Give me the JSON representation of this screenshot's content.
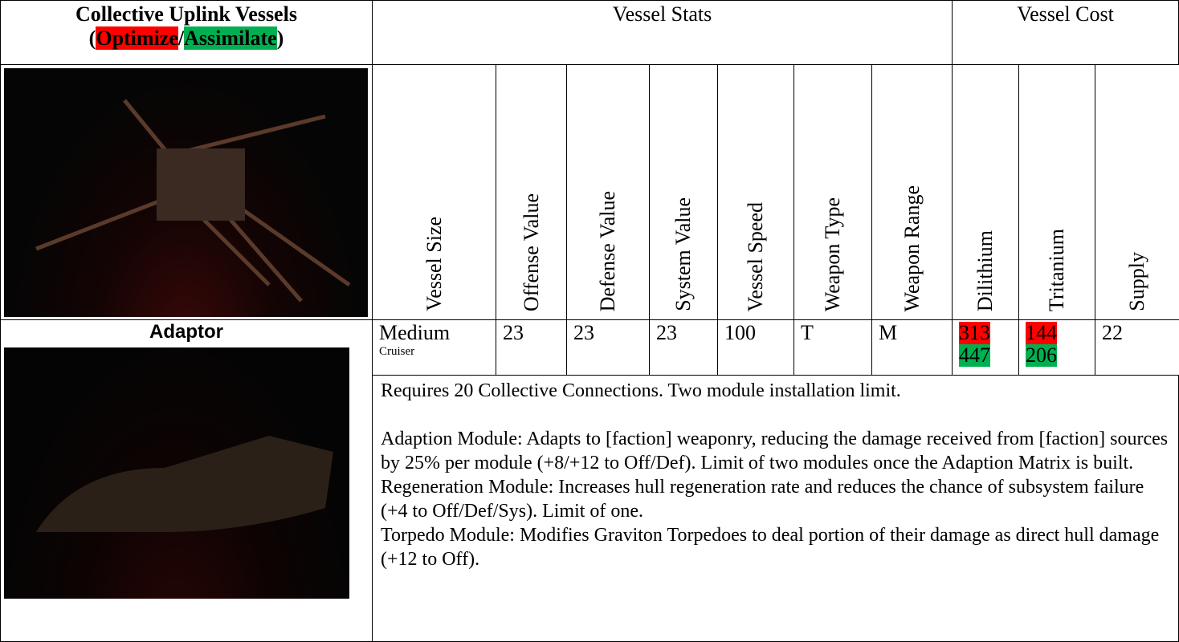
{
  "header": {
    "title": "Collective Uplink Vessels",
    "subtitle_parts": [
      "(",
      "Optimize",
      "/",
      "Assimilate",
      ")"
    ],
    "stats": "Vessel Stats",
    "cost": "Vessel Cost"
  },
  "columns": [
    "Vessel Size",
    "Offense Value",
    "Defense Value",
    "System Value",
    "Vessel Speed",
    "Weapon Type",
    "Weapon Range",
    "Dilithium",
    "Tritanium",
    "Supply"
  ],
  "vessel": {
    "name": "Adaptor",
    "size": "Medium",
    "class": "Cruiser",
    "offense": 23,
    "defense": 23,
    "system": 23,
    "speed": 100,
    "weapon_type": "T",
    "weapon_range": "M",
    "dilithium": [
      313,
      447
    ],
    "tritanium": [
      144,
      206
    ],
    "supply": 22
  },
  "description": [
    "Requires 20 Collective Connections. Two module installation limit.",
    "Adaption Module: Adapts to [faction] weaponry, reducing the damage received from [faction] sources by 25% per module (+8/+12 to Off/Def). Limit of two modules once the Adaption Matrix is built.",
    "Regeneration Module: Increases hull regeneration rate and reduces the chance of subsystem failure (+4 to Off/Def/Sys). Limit of one.",
    "Torpedo Module: Modifies Graviton Torpedoes to deal portion of their damage as direct hull damage (+12 to Off)."
  ]
}
